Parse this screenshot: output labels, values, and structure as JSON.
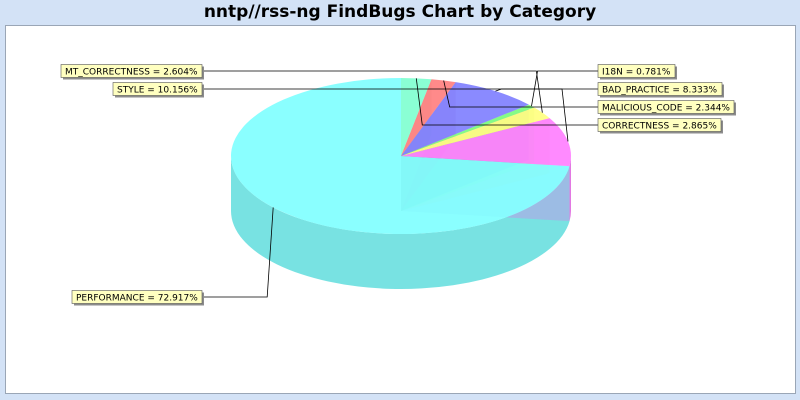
{
  "chart_data": {
    "type": "pie",
    "title": "nntp//rss-ng FindBugs Chart by Category",
    "slices": [
      {
        "label": "PERFORMANCE",
        "value": 72.917,
        "display": "PERFORMANCE = 72.917%",
        "color": "#80ffff"
      },
      {
        "label": "STYLE",
        "value": 10.156,
        "display": "STYLE = 10.156%",
        "color": "#ff80ff"
      },
      {
        "label": "MT_CORRECTNESS",
        "value": 2.604,
        "display": "MT_CORRECTNESS = 2.604%",
        "color": "#ffff80"
      },
      {
        "label": "I18N",
        "value": 0.781,
        "display": "I18N = 0.781%",
        "color": "#80ff80"
      },
      {
        "label": "BAD_PRACTICE",
        "value": 8.333,
        "display": "BAD_PRACTICE = 8.333%",
        "color": "#8080ff"
      },
      {
        "label": "MALICIOUS_CODE",
        "value": 2.344,
        "display": "MALICIOUS_CODE = 2.344%",
        "color": "#ff8080"
      },
      {
        "label": "CORRECTNESS",
        "value": 2.865,
        "display": "CORRECTNESS = 2.865%",
        "color": "#80ffd0"
      }
    ],
    "label_box_color": "#ffffc0",
    "background_color": "#d3e2f6",
    "plot_background": "#ffffff",
    "legend": "none",
    "depth_3d": true
  }
}
